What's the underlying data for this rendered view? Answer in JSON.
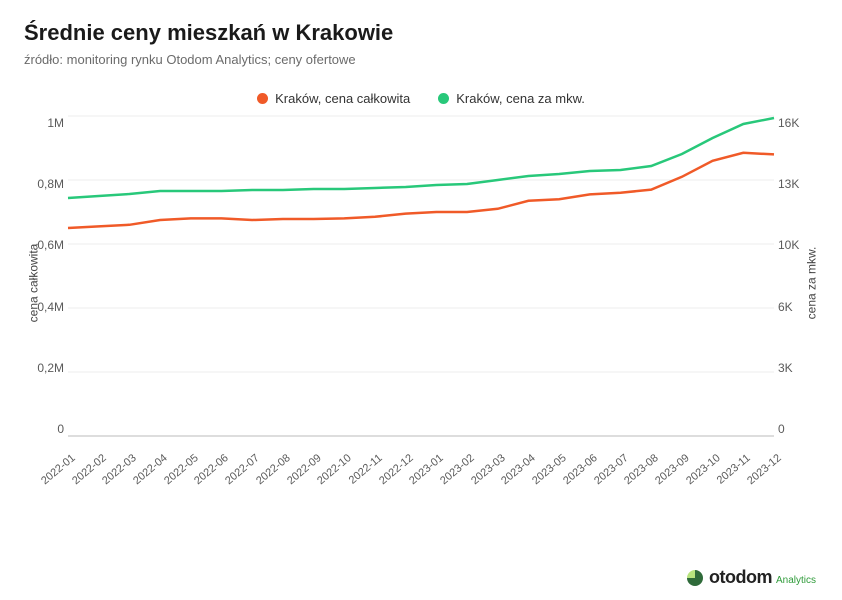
{
  "title": "Średnie ceny mieszkań w Krakowie",
  "subtitle": "źródło: monitoring rynku Otodom Analytics; ceny ofertowe",
  "legend": {
    "series1": {
      "label": "Kraków, cena całkowita",
      "color": "#f05a28"
    },
    "series2": {
      "label": "Kraków, cena za mkw.",
      "color": "#28c87a"
    }
  },
  "chart": {
    "type": "line",
    "background_color": "#ffffff",
    "grid_color": "#eeeeee",
    "line_width": 2.5,
    "x_categories": [
      "2022-01",
      "2022-02",
      "2022-03",
      "2022-04",
      "2022-05",
      "2022-06",
      "2022-07",
      "2022-08",
      "2022-09",
      "2022-10",
      "2022-11",
      "2022-12",
      "2023-01",
      "2023-02",
      "2023-03",
      "2023-04",
      "2023-05",
      "2023-06",
      "2023-07",
      "2023-08",
      "2023-09",
      "2023-10",
      "2023-11",
      "2023-12"
    ],
    "y_left": {
      "label": "cena całkowita",
      "min": 0,
      "max": 1000000,
      "ticks": [
        0,
        200000,
        400000,
        600000,
        800000,
        1000000
      ],
      "tick_labels": [
        "0",
        "0,2M",
        "0,4M",
        "0,6M",
        "0,8M",
        "1M"
      ]
    },
    "y_right": {
      "label": "cena za mkw.",
      "min": 0,
      "max": 16000,
      "ticks": [
        0,
        3000,
        6000,
        10000,
        13000,
        16000
      ],
      "tick_labels": [
        "0",
        "3K",
        "6K",
        "10K",
        "13K",
        "16K"
      ]
    },
    "series1_values": [
      650000,
      655000,
      660000,
      675000,
      680000,
      680000,
      675000,
      678000,
      678000,
      680000,
      685000,
      695000,
      700000,
      700000,
      710000,
      735000,
      740000,
      755000,
      760000,
      770000,
      810000,
      860000,
      885000,
      880000
    ],
    "series2_values": [
      11900,
      12000,
      12100,
      12250,
      12250,
      12250,
      12300,
      12300,
      12350,
      12350,
      12400,
      12450,
      12550,
      12600,
      12800,
      13000,
      13100,
      13250,
      13300,
      13500,
      14100,
      14900,
      15600,
      15900
    ]
  },
  "brand": {
    "name": "otodom",
    "sub": "Analytics"
  }
}
